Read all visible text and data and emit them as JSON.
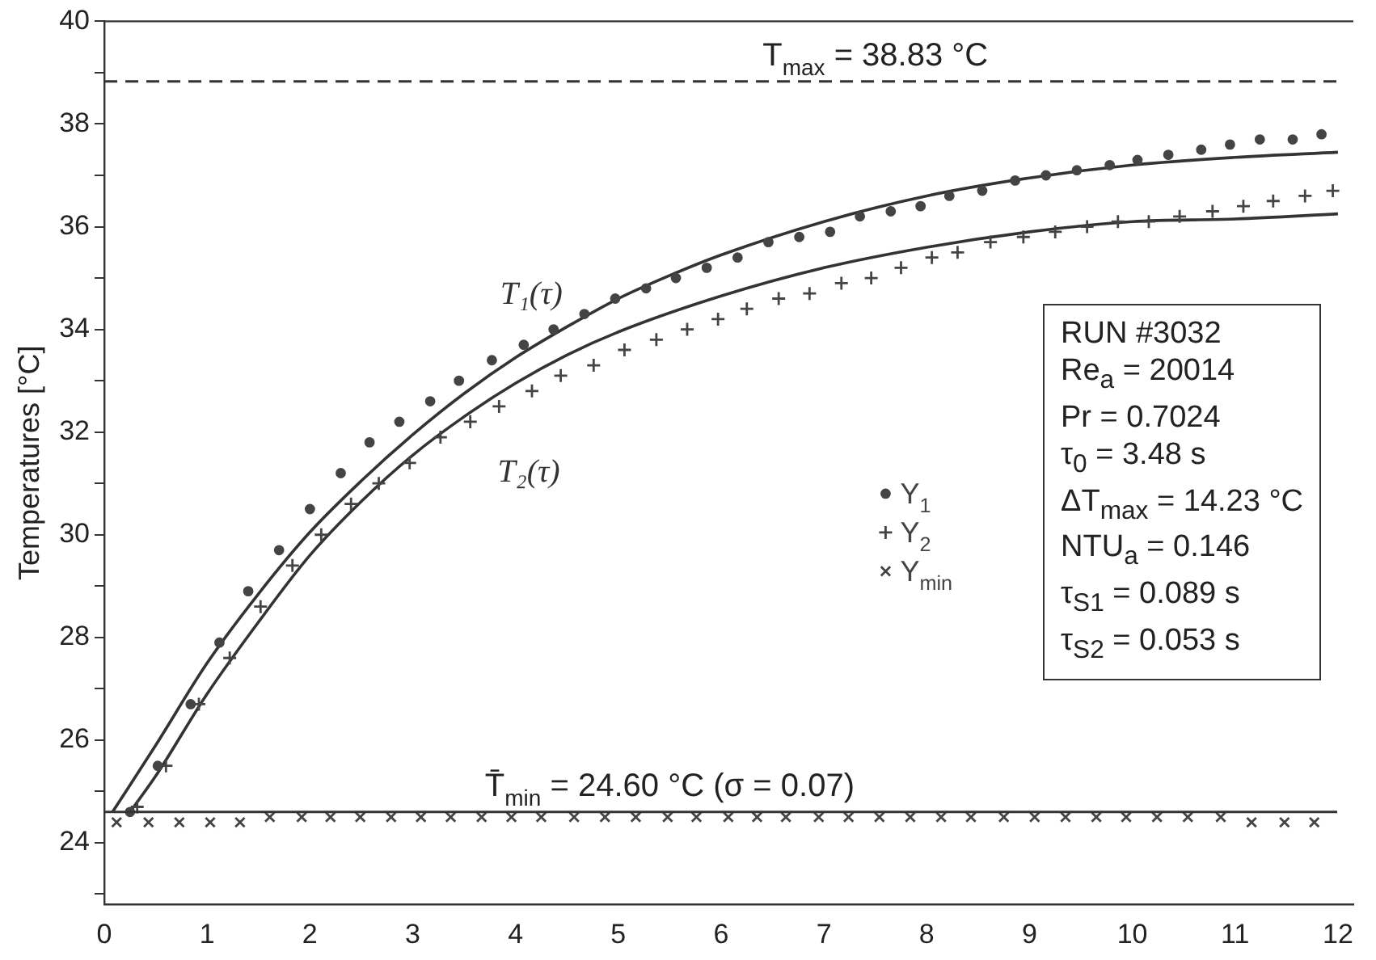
{
  "chart_data": {
    "type": "scatter",
    "ylabel": "Temperatures [°C]",
    "xlim": [
      0,
      12.15
    ],
    "xticks": [
      0,
      1,
      2,
      3,
      4,
      5,
      6,
      7,
      8,
      9,
      10,
      11,
      12
    ],
    "ylim": [
      22.8,
      40
    ],
    "yticks": [
      {
        "value": 23,
        "label": null
      },
      24,
      {
        "value": 25,
        "label": null
      },
      26,
      {
        "value": 27,
        "label": null
      },
      28,
      {
        "value": 29,
        "label": null
      },
      30,
      {
        "value": 31,
        "label": null
      },
      32,
      {
        "value": 33,
        "label": null
      },
      34,
      {
        "value": 35,
        "label": null
      },
      36,
      {
        "value": 37,
        "label": null
      },
      38,
      {
        "value": 39,
        "label": null
      },
      40
    ],
    "grid": false,
    "legend": "right",
    "series": [
      {
        "name": "Y$_{1}$",
        "marker": "circle",
        "color": "#444444",
        "x": [
          0.25,
          0.52,
          0.84,
          1.12,
          1.4,
          1.7,
          2.0,
          2.3,
          2.58,
          2.87,
          3.17,
          3.45,
          3.77,
          4.08,
          4.37,
          4.67,
          4.97,
          5.27,
          5.56,
          5.86,
          6.16,
          6.46,
          6.76,
          7.06,
          7.35,
          7.65,
          7.94,
          8.22,
          8.54,
          8.86,
          9.16,
          9.46,
          9.78,
          10.05,
          10.35,
          10.67,
          10.95,
          11.24,
          11.56,
          11.84
        ],
        "values": [
          24.6,
          25.5,
          26.7,
          27.9,
          28.9,
          29.7,
          30.5,
          31.2,
          31.8,
          32.2,
          32.6,
          33.0,
          33.4,
          33.7,
          34.0,
          34.3,
          34.6,
          34.8,
          35.0,
          35.2,
          35.4,
          35.7,
          35.8,
          35.9,
          36.2,
          36.3,
          36.4,
          36.6,
          36.7,
          36.9,
          37.0,
          37.1,
          37.2,
          37.3,
          37.4,
          37.5,
          37.6,
          37.7,
          37.7,
          37.8
        ]
      },
      {
        "name": "Y$_{2}$",
        "marker": "cross",
        "color": "#444444",
        "x": [
          0.32,
          0.6,
          0.92,
          1.22,
          1.52,
          1.83,
          2.11,
          2.4,
          2.67,
          2.97,
          3.27,
          3.56,
          3.84,
          4.16,
          4.44,
          4.76,
          5.06,
          5.37,
          5.67,
          5.97,
          6.25,
          6.56,
          6.86,
          7.17,
          7.46,
          7.75,
          8.05,
          8.3,
          8.62,
          8.94,
          9.25,
          9.56,
          9.86,
          10.16,
          10.46,
          10.78,
          11.08,
          11.37,
          11.68,
          11.95
        ],
        "values": [
          24.7,
          25.5,
          26.7,
          27.6,
          28.6,
          29.4,
          30.0,
          30.6,
          31.0,
          31.4,
          31.9,
          32.2,
          32.5,
          32.8,
          33.1,
          33.3,
          33.6,
          33.8,
          34.0,
          34.2,
          34.4,
          34.6,
          34.7,
          34.9,
          35.0,
          35.2,
          35.4,
          35.5,
          35.7,
          35.8,
          35.9,
          36.0,
          36.1,
          36.1,
          36.2,
          36.3,
          36.4,
          36.5,
          36.6,
          36.7
        ]
      },
      {
        "name": "Y$_{min}$",
        "marker": "x",
        "color": "#444444",
        "x": [
          0.12,
          0.43,
          0.73,
          1.03,
          1.32,
          1.61,
          1.92,
          2.2,
          2.49,
          2.79,
          3.08,
          3.37,
          3.67,
          3.96,
          4.25,
          4.57,
          4.87,
          5.17,
          5.48,
          5.76,
          6.07,
          6.35,
          6.63,
          6.95,
          7.24,
          7.54,
          7.84,
          8.14,
          8.43,
          8.75,
          9.05,
          9.35,
          9.65,
          9.94,
          10.24,
          10.54,
          10.86,
          11.16,
          11.48,
          11.77
        ],
        "values": [
          24.4,
          24.4,
          24.4,
          24.4,
          24.4,
          24.5,
          24.5,
          24.5,
          24.5,
          24.5,
          24.5,
          24.5,
          24.5,
          24.5,
          24.5,
          24.5,
          24.5,
          24.5,
          24.5,
          24.5,
          24.5,
          24.5,
          24.5,
          24.5,
          24.5,
          24.5,
          24.5,
          24.5,
          24.5,
          24.5,
          24.5,
          24.5,
          24.5,
          24.5,
          24.5,
          24.5,
          24.5,
          24.4,
          24.4,
          24.4
        ]
      },
      {
        "name": "T₁(τ)",
        "type": "line",
        "marker": "none",
        "line_style": "solid",
        "color": "#333333",
        "x": [
          0.08,
          0.5,
          1,
          1.5,
          2,
          2.5,
          3,
          3.5,
          4,
          4.5,
          5,
          5.5,
          6,
          7,
          8,
          9,
          10,
          11,
          12
        ],
        "values": [
          24.6,
          25.9,
          27.5,
          28.85,
          30.05,
          31.05,
          31.95,
          32.75,
          33.45,
          34.05,
          34.6,
          35.05,
          35.45,
          36.1,
          36.6,
          36.95,
          37.2,
          37.35,
          37.45
        ]
      },
      {
        "name": "T₂(τ)",
        "type": "line",
        "marker": "none",
        "line_style": "solid",
        "color": "#333333",
        "x": [
          0.25,
          0.5,
          1,
          1.5,
          2,
          2.5,
          3,
          3.5,
          4,
          4.5,
          5,
          6,
          7,
          8,
          9,
          10,
          11,
          12
        ],
        "values": [
          24.6,
          25.3,
          26.9,
          28.3,
          29.6,
          30.65,
          31.55,
          32.3,
          32.95,
          33.5,
          33.95,
          34.65,
          35.2,
          35.6,
          35.9,
          36.1,
          36.15,
          36.25
        ]
      }
    ],
    "ref_lines": [
      {
        "axis": "y",
        "value": 38.83,
        "label": "T$_{max}$ = 38.83 °C",
        "line_style": "dashed",
        "color": "#333333"
      },
      {
        "axis": "y",
        "value": 24.6,
        "label": "T̄$_{min}$ = 24.60 °C (σ = 0.07)",
        "line_style": "solid",
        "color": "#333333"
      }
    ],
    "annotations": [
      "RUN #3032",
      "Re$_{a}$ = 20014",
      "Pr = 0.7024",
      "τ$_{0}$ = 3.48 s",
      "ΔT$_{max}$ = 14.23 °C",
      "NTU$_{a}$ = 0.146",
      "τ$_{S1}$ = 0.089 s",
      "τ$_{S2}$ = 0.053 s"
    ]
  }
}
